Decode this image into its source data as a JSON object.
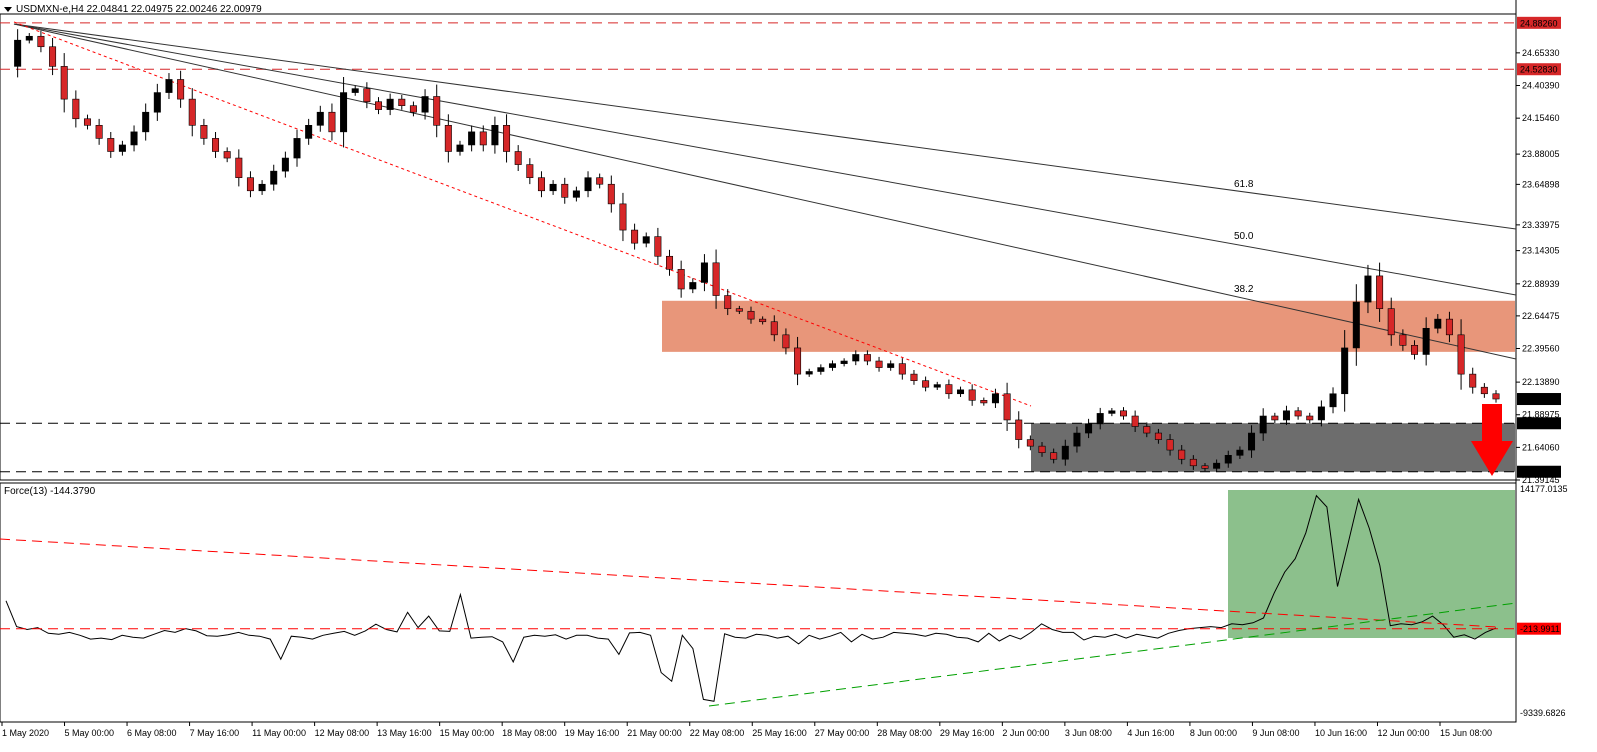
{
  "header": {
    "main_title": "USDMXN-e,H4  22.04841 22.04975 22.00246 22.00979",
    "force_title": "Force(13) -144.3790"
  },
  "colors": {
    "bull": "#000000",
    "bear": "#d62728",
    "resistance_zone": "#e8967a",
    "support_zone": "#6d6d6d",
    "force_zone": "#8cc08c",
    "trend_red": "#ff0000",
    "trend_green": "#00a000",
    "fan": "#333333",
    "arrow": "#ff0000"
  },
  "chart_data": [
    {
      "type": "candlestick",
      "symbol": "USDMXN-e",
      "timeframe": "H4",
      "ohlc_current": {
        "open": 22.04841,
        "high": 22.04975,
        "low": 22.00246,
        "close": 22.00979
      },
      "ylim": [
        21.39145,
        24.95
      ],
      "y_ticks": [
        24.6533,
        24.4039,
        24.1546,
        23.88005,
        23.64898,
        23.33975,
        23.14305,
        22.88939,
        22.64475,
        22.3956,
        22.1389,
        21.88975,
        21.6406,
        21.39145
      ],
      "x_tick_labels": [
        "1 May 2020",
        "5 May 00:00",
        "6 May 08:00",
        "7 May 16:00",
        "11 May 00:00",
        "12 May 08:00",
        "13 May 16:00",
        "15 May 00:00",
        "18 May 08:00",
        "19 May 16:00",
        "21 May 00:00",
        "22 May 08:00",
        "25 May 16:00",
        "27 May 00:00",
        "28 May 08:00",
        "29 May 16:00",
        "2 Jun 00:00",
        "3 Jun 08:00",
        "4 Jun 16:00",
        "8 Jun 00:00",
        "9 Jun 08:00",
        "10 Jun 16:00",
        "12 Jun 00:00",
        "15 Jun 08:00"
      ],
      "horizontal_levels": [
        {
          "price": 24.8826,
          "label": "24.88260"
        },
        {
          "price": 24.5283,
          "label": "24.52830"
        },
        {
          "price": 21.8248,
          "label": "21.82480"
        },
        {
          "price": 21.4545,
          "label": "21.45450"
        }
      ],
      "current_price_label": "22.00979",
      "resistance_zone": [
        22.37,
        22.76
      ],
      "support_zone": [
        21.4545,
        21.8248
      ],
      "fib_fan_labels": [
        "38.2",
        "50.0",
        "61.8"
      ],
      "closes": [
        24.55,
        24.75,
        24.78,
        24.7,
        24.55,
        24.3,
        24.15,
        24.1,
        24.0,
        23.9,
        23.95,
        24.05,
        24.2,
        24.35,
        24.45,
        24.3,
        24.1,
        24.0,
        23.9,
        23.85,
        23.7,
        23.6,
        23.65,
        23.75,
        23.85,
        24.0,
        24.1,
        24.2,
        24.05,
        24.35,
        24.38,
        24.28,
        24.22,
        24.3,
        24.25,
        24.2,
        24.32,
        24.1,
        23.9,
        23.95,
        24.05,
        23.95,
        24.1,
        23.9,
        23.8,
        23.7,
        23.6,
        23.65,
        23.55,
        23.6,
        23.7,
        23.65,
        23.5,
        23.3,
        23.2,
        23.25,
        23.1,
        23.0,
        22.85,
        22.9,
        23.05,
        22.8,
        22.7,
        22.68,
        22.62,
        22.6,
        22.5,
        22.4,
        22.2,
        22.22,
        22.25,
        22.28,
        22.3,
        22.35,
        22.3,
        22.25,
        22.28,
        22.2,
        22.15,
        22.1,
        22.12,
        22.05,
        22.08,
        22.0,
        21.98,
        22.05,
        21.85,
        21.7,
        21.65,
        21.6,
        21.55,
        21.65,
        21.75,
        21.82,
        21.9,
        21.92,
        21.88,
        21.8,
        21.75,
        21.7,
        21.62,
        21.55,
        21.5,
        21.48,
        21.52,
        21.58,
        21.62,
        21.75,
        21.88,
        21.85,
        21.92,
        21.88,
        21.85,
        21.95,
        22.05,
        22.4,
        22.75,
        22.95,
        22.7,
        22.5,
        22.42,
        22.35,
        22.55,
        22.62,
        22.5,
        22.2,
        22.1,
        22.05,
        22.01
      ]
    },
    {
      "type": "line",
      "name": "Force(13)",
      "value_current": -144.379,
      "ylim": [
        -9339.6826,
        14177.0135
      ],
      "y_tick_labels": [
        "14177.0135",
        "-9339.6826"
      ],
      "level": {
        "value": -213.9911,
        "label": "-213.9911"
      },
      "values": [
        2700,
        0,
        -300,
        -100,
        -700,
        -800,
        -600,
        -900,
        -1300,
        -1200,
        -1350,
        -900,
        -1100,
        -1200,
        -800,
        -400,
        -600,
        -200,
        -450,
        -950,
        -1000,
        -850,
        -600,
        -900,
        -1000,
        -1300,
        -3400,
        -1000,
        -1100,
        -1300,
        -900,
        -700,
        -500,
        -900,
        -450,
        250,
        -300,
        -550,
        1500,
        -100,
        1100,
        -450,
        -500,
        3350,
        -1200,
        -1100,
        -1050,
        -1600,
        -3700,
        -1100,
        -900,
        -1000,
        -850,
        -1300,
        -900,
        -900,
        -1200,
        -1300,
        -2900,
        -650,
        -600,
        -900,
        -4800,
        -5700,
        -900,
        -2300,
        -7600,
        -7800,
        -750,
        -1100,
        -1200,
        -800,
        -900,
        -1200,
        -1000,
        -1800,
        -900,
        -1300,
        -1000,
        -600,
        -1600,
        -800,
        -1300,
        -1100,
        -600,
        -700,
        -800,
        -1000,
        -700,
        -800,
        -1100,
        -1200,
        -1600,
        -700,
        -1500,
        -900,
        -1300,
        -600,
        300,
        -300,
        -600,
        -600,
        -1400,
        -1000,
        -1100,
        -800,
        -1200,
        -800,
        -1000,
        -1200,
        -700,
        -400,
        -200,
        -100,
        0,
        -100,
        300,
        200,
        400,
        900,
        3500,
        5700,
        7100,
        9800,
        13700,
        12500,
        4200,
        8700,
        13300,
        10300,
        6400,
        100,
        300,
        200,
        500,
        1100,
        200,
        -1100,
        -850,
        -1300,
        -600,
        -144
      ]
    }
  ]
}
